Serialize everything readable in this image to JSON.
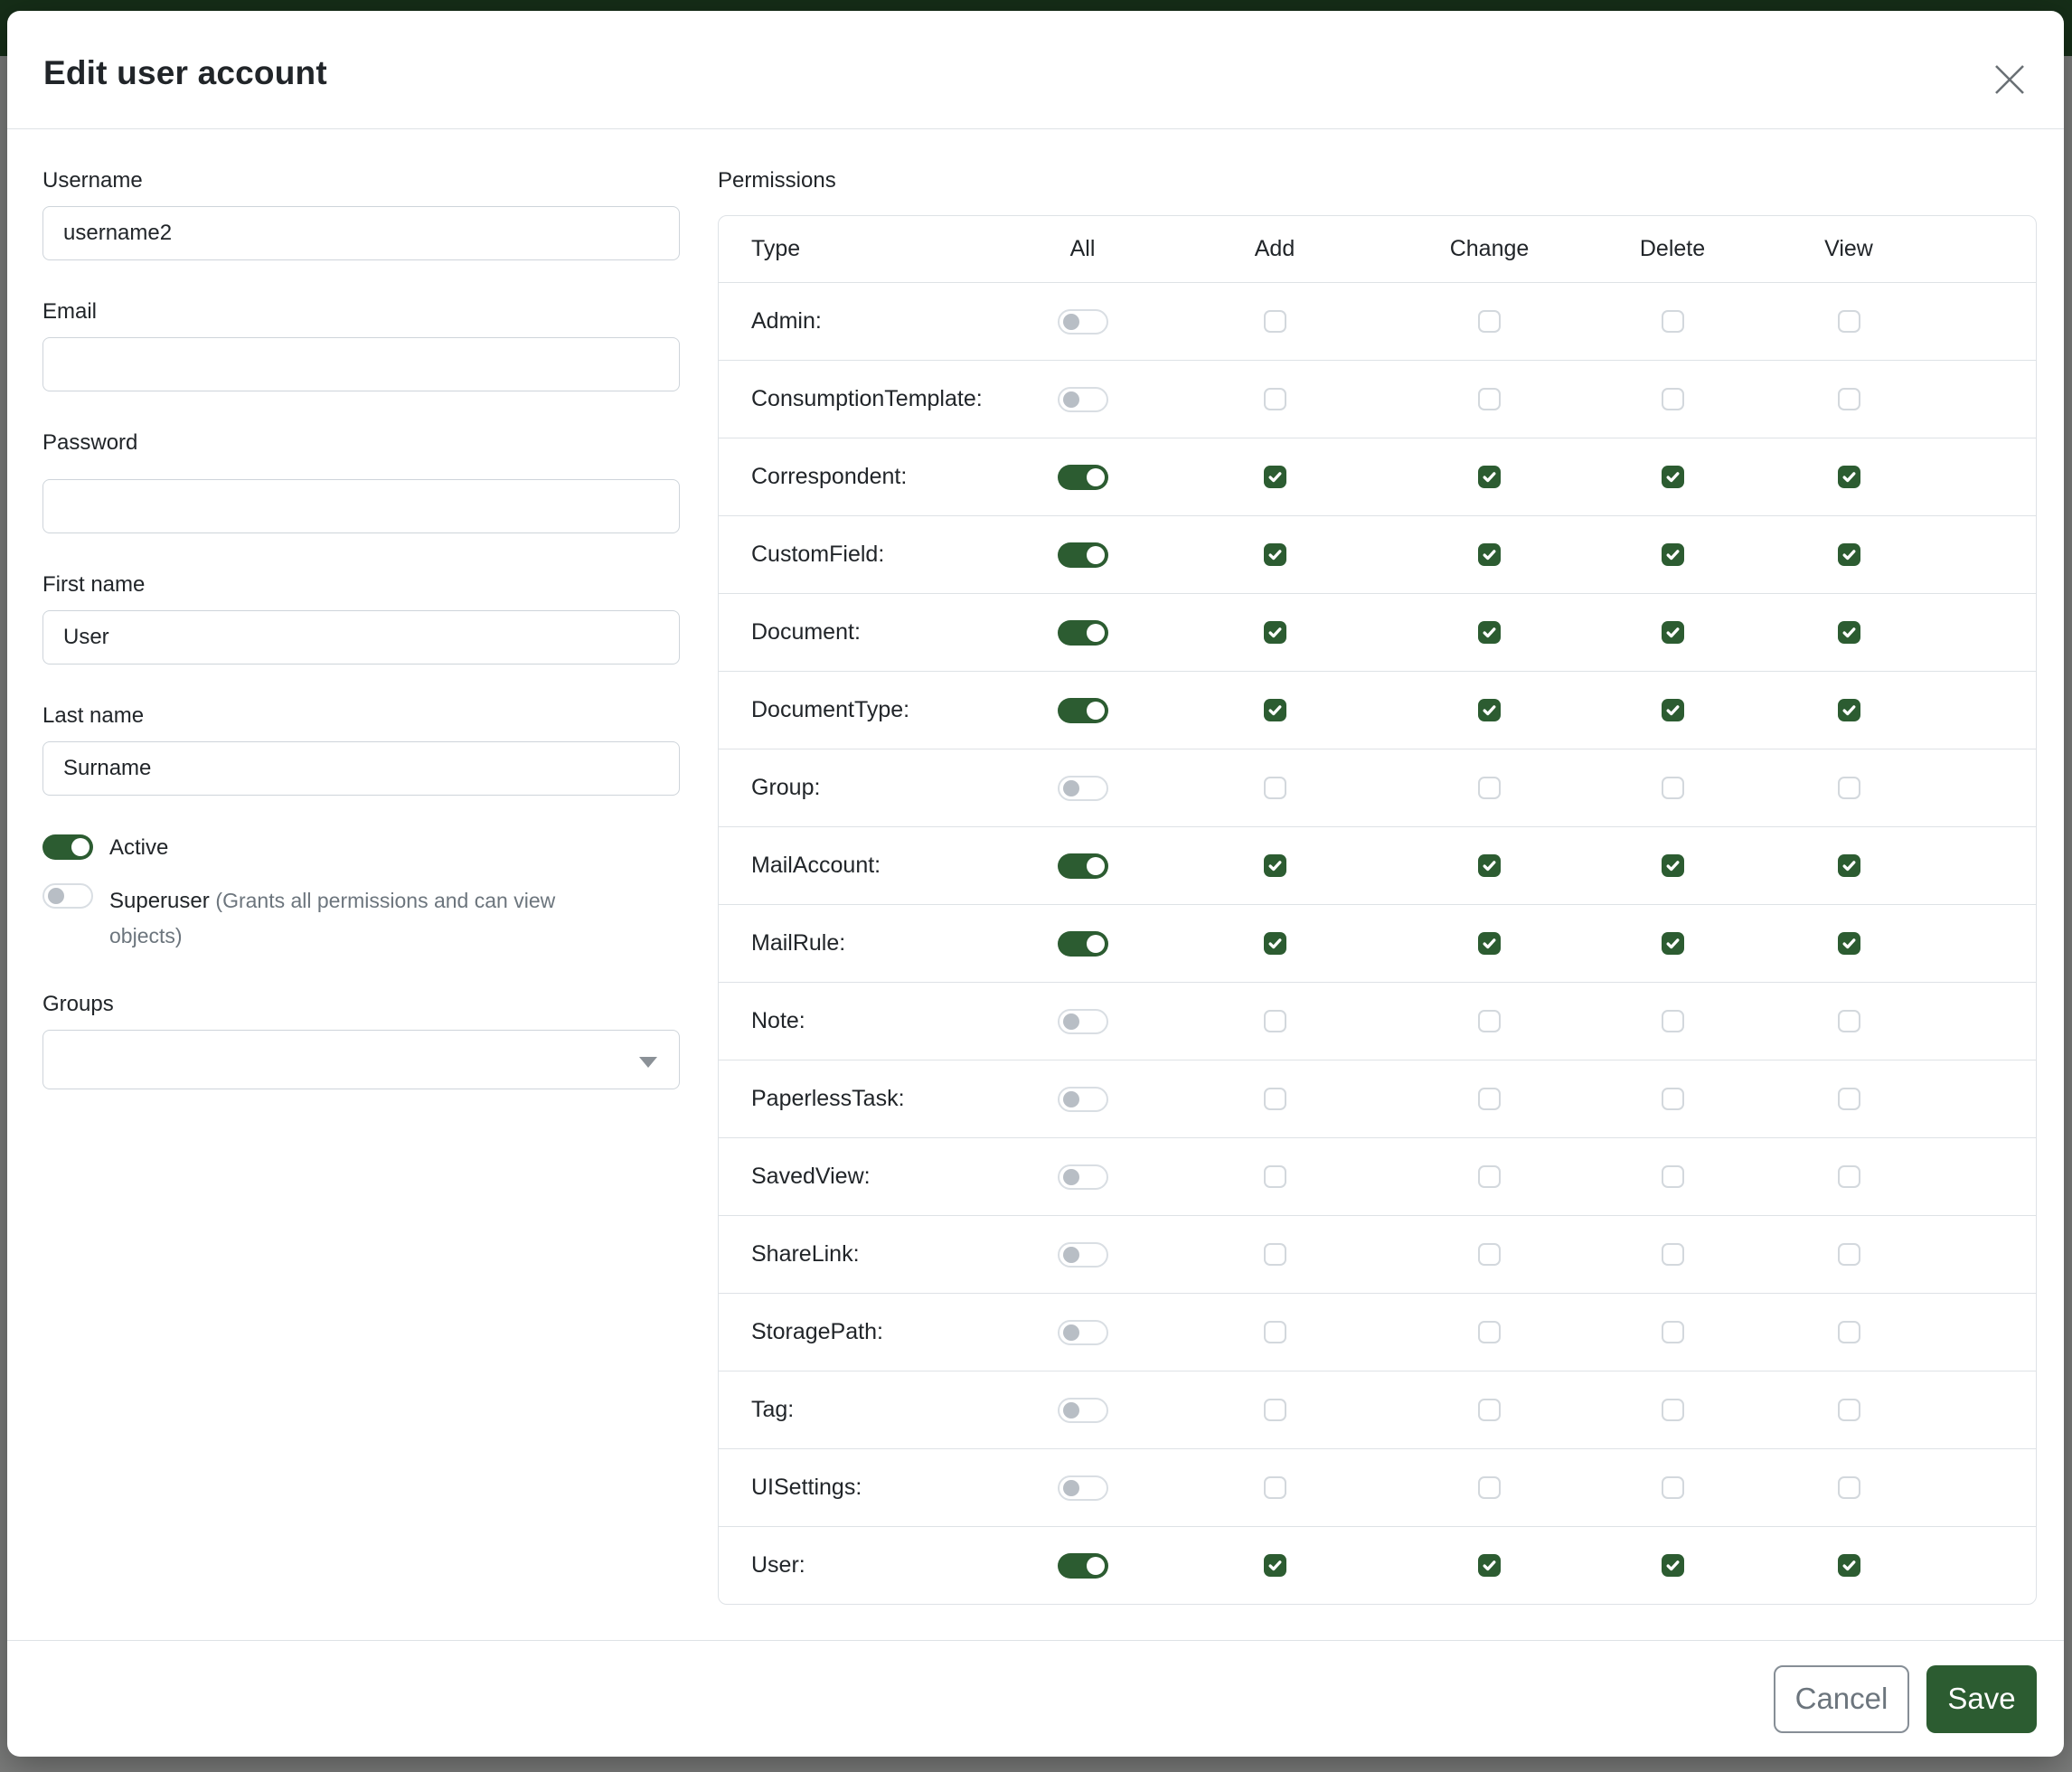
{
  "colors": {
    "primary_green": "#2c5c31",
    "border_grey": "#dee2e6",
    "text_dark": "#212529",
    "text_muted": "#6c757d"
  },
  "modal": {
    "title": "Edit user account",
    "fields": {
      "username": {
        "label": "Username",
        "value": "username2"
      },
      "email": {
        "label": "Email",
        "value": ""
      },
      "password": {
        "label": "Password",
        "value": ""
      },
      "first_name": {
        "label": "First name",
        "value": "User"
      },
      "last_name": {
        "label": "Last name",
        "value": "Surname"
      },
      "active": {
        "label": "Active",
        "enabled": true
      },
      "superuser": {
        "label": "Superuser",
        "hint": "(Grants all permissions and can view objects)",
        "enabled": false
      },
      "groups": {
        "label": "Groups",
        "value": ""
      }
    },
    "permissions": {
      "label": "Permissions",
      "columns": [
        "Type",
        "All",
        "Add",
        "Change",
        "Delete",
        "View"
      ],
      "rows": [
        {
          "label": "Admin:",
          "all": false,
          "add": false,
          "change": false,
          "delete": false,
          "view": false
        },
        {
          "label": "ConsumptionTemplate:",
          "all": false,
          "add": false,
          "change": false,
          "delete": false,
          "view": false
        },
        {
          "label": "Correspondent:",
          "all": true,
          "add": true,
          "change": true,
          "delete": true,
          "view": true
        },
        {
          "label": "CustomField:",
          "all": true,
          "add": true,
          "change": true,
          "delete": true,
          "view": true
        },
        {
          "label": "Document:",
          "all": true,
          "add": true,
          "change": true,
          "delete": true,
          "view": true
        },
        {
          "label": "DocumentType:",
          "all": true,
          "add": true,
          "change": true,
          "delete": true,
          "view": true
        },
        {
          "label": "Group:",
          "all": false,
          "add": false,
          "change": false,
          "delete": false,
          "view": false
        },
        {
          "label": "MailAccount:",
          "all": true,
          "add": true,
          "change": true,
          "delete": true,
          "view": true
        },
        {
          "label": "MailRule:",
          "all": true,
          "add": true,
          "change": true,
          "delete": true,
          "view": true
        },
        {
          "label": "Note:",
          "all": false,
          "add": false,
          "change": false,
          "delete": false,
          "view": false
        },
        {
          "label": "PaperlessTask:",
          "all": false,
          "add": false,
          "change": false,
          "delete": false,
          "view": false
        },
        {
          "label": "SavedView:",
          "all": false,
          "add": false,
          "change": false,
          "delete": false,
          "view": false
        },
        {
          "label": "ShareLink:",
          "all": false,
          "add": false,
          "change": false,
          "delete": false,
          "view": false
        },
        {
          "label": "StoragePath:",
          "all": false,
          "add": false,
          "change": false,
          "delete": false,
          "view": false
        },
        {
          "label": "Tag:",
          "all": false,
          "add": false,
          "change": false,
          "delete": false,
          "view": false
        },
        {
          "label": "UISettings:",
          "all": false,
          "add": false,
          "change": false,
          "delete": false,
          "view": false
        },
        {
          "label": "User:",
          "all": true,
          "add": true,
          "change": true,
          "delete": true,
          "view": true
        }
      ]
    },
    "footer": {
      "cancel_label": "Cancel",
      "save_label": "Save"
    }
  }
}
